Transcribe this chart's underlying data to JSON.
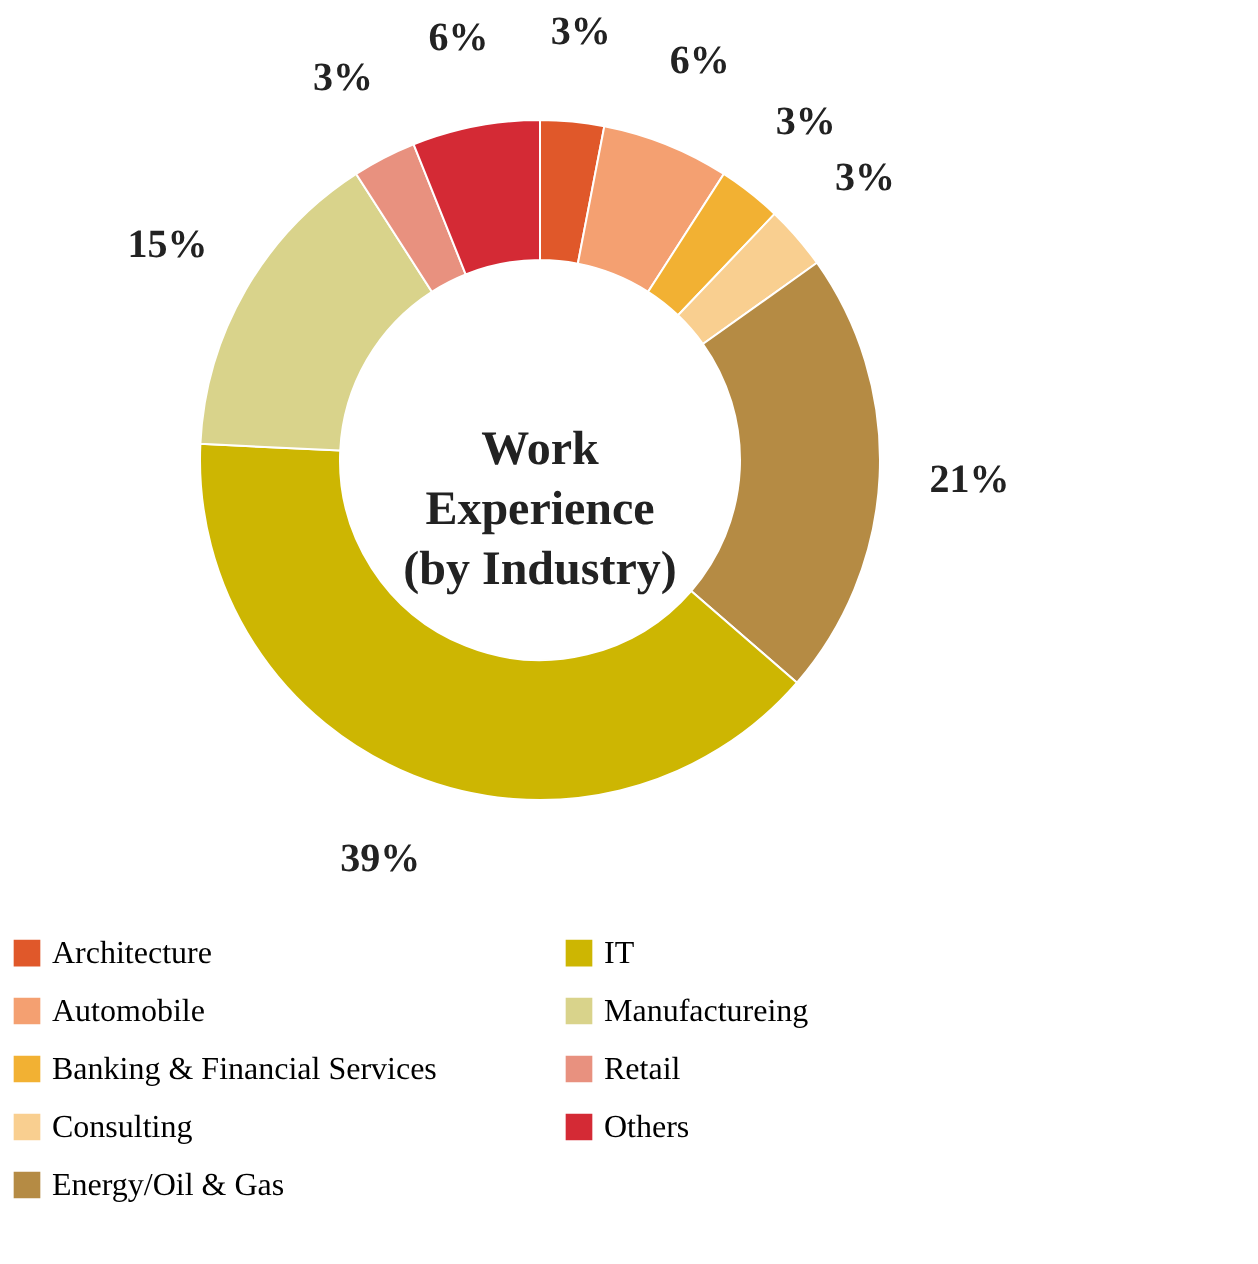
{
  "chart_data": {
    "type": "donut",
    "title": "Work Experience (by Industry)",
    "categories": [
      "Architecture",
      "Automobile",
      "Banking & Financial Services",
      "Consulting",
      "Energy/Oil & Gas",
      "IT",
      "Manufactureing",
      "Retail",
      "Others"
    ],
    "values": [
      3,
      6,
      3,
      3,
      21,
      39,
      15,
      3,
      6
    ],
    "colors": [
      "#e0582a",
      "#f4a071",
      "#f2b133",
      "#f9cf90",
      "#b58b44",
      "#cdb602",
      "#d9d38b",
      "#e8917f",
      "#d42a35"
    ],
    "value_labels": [
      "3%",
      "6%",
      "3%",
      "3%",
      "21%",
      "39%",
      "15%",
      "3%",
      "6%"
    ],
    "legend": "bottom"
  }
}
